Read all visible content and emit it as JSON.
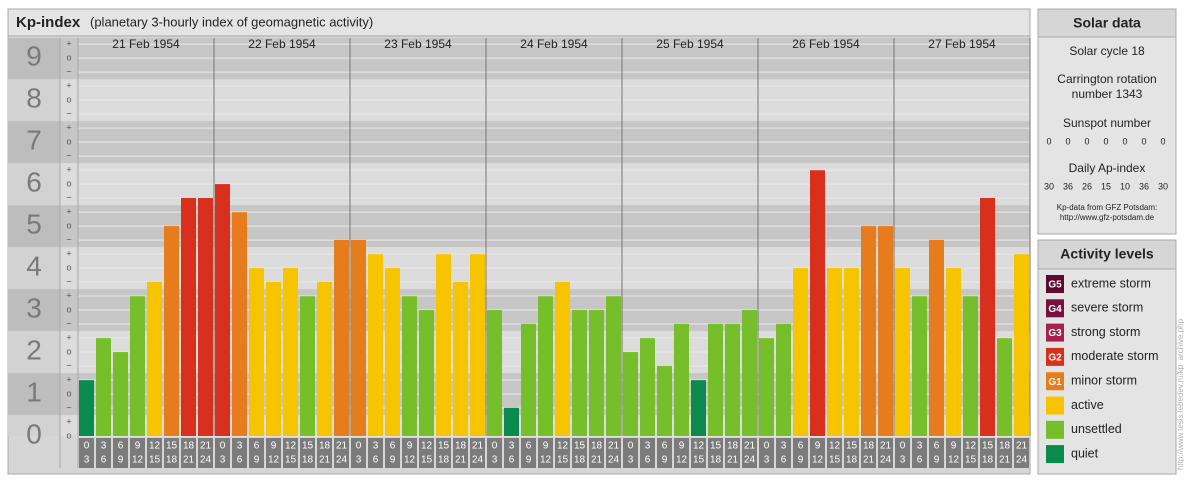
{
  "chart_data": {
    "type": "bar",
    "title": "Kp-index",
    "subtitle": "(planetary 3-hourly index of geomagnetic activity)",
    "ylim": [
      0,
      9.48
    ],
    "yticks": [
      0,
      1,
      2,
      3,
      4,
      5,
      6,
      7,
      8,
      9
    ],
    "minor_marks": {
      "minus": "−",
      "zero": "o",
      "plus": "+"
    },
    "intervals": [
      [
        0,
        3
      ],
      [
        3,
        6
      ],
      [
        6,
        9
      ],
      [
        9,
        12
      ],
      [
        12,
        15
      ],
      [
        15,
        18
      ],
      [
        18,
        21
      ],
      [
        21,
        24
      ]
    ],
    "days": [
      {
        "date": "21 Feb 1954",
        "values": [
          1.33,
          2.33,
          2,
          3.33,
          3.67,
          5,
          5.67,
          5.67
        ],
        "colors": [
          "#0b8a4d",
          "#76bf2b",
          "#76bf2b",
          "#76bf2b",
          "#f7c500",
          "#e77c1c",
          "#d9301e",
          "#d9301e"
        ]
      },
      {
        "date": "22 Feb 1954",
        "values": [
          6,
          5.33,
          4,
          3.67,
          4,
          3.33,
          3.67,
          4.67
        ],
        "colors": [
          "#d9301e",
          "#e77c1c",
          "#f7c500",
          "#f7c500",
          "#f7c500",
          "#76bf2b",
          "#f7c500",
          "#e77c1c"
        ]
      },
      {
        "date": "23 Feb 1954",
        "values": [
          4.67,
          4.33,
          4,
          3.33,
          3,
          4.33,
          3.67,
          4.33
        ],
        "colors": [
          "#e77c1c",
          "#f7c500",
          "#f7c500",
          "#76bf2b",
          "#76bf2b",
          "#f7c500",
          "#f7c500",
          "#f7c500"
        ]
      },
      {
        "date": "24 Feb 1954",
        "values": [
          3,
          0.67,
          2.67,
          3.33,
          3.67,
          3,
          3,
          3.33
        ],
        "colors": [
          "#76bf2b",
          "#0b8a4d",
          "#76bf2b",
          "#76bf2b",
          "#f7c500",
          "#76bf2b",
          "#76bf2b",
          "#76bf2b"
        ]
      },
      {
        "date": "25 Feb 1954",
        "values": [
          2,
          2.33,
          1.67,
          2.67,
          1.33,
          2.67,
          2.67,
          3
        ],
        "colors": [
          "#76bf2b",
          "#76bf2b",
          "#76bf2b",
          "#76bf2b",
          "#0b8a4d",
          "#76bf2b",
          "#76bf2b",
          "#76bf2b"
        ]
      },
      {
        "date": "26 Feb 1954",
        "values": [
          2.33,
          2.67,
          4,
          6.33,
          4,
          4,
          5,
          5
        ],
        "colors": [
          "#76bf2b",
          "#76bf2b",
          "#f7c500",
          "#d9301e",
          "#f7c500",
          "#f7c500",
          "#e77c1c",
          "#e77c1c"
        ]
      },
      {
        "date": "27 Feb 1954",
        "values": [
          4,
          3.33,
          4.67,
          4,
          3.33,
          5.67,
          2.33,
          4.33
        ],
        "colors": [
          "#f7c500",
          "#76bf2b",
          "#e77c1c",
          "#f7c500",
          "#76bf2b",
          "#d9301e",
          "#76bf2b",
          "#f7c500"
        ]
      }
    ],
    "solar": {
      "title": "Solar data",
      "cycle": "Solar cycle 18",
      "carrington": [
        "Carrington rotation",
        "number 1343"
      ],
      "sunspot_title": "Sunspot number",
      "sunspot": [
        0,
        0,
        0,
        0,
        0,
        0,
        0
      ],
      "ap_title": "Daily Ap-index",
      "ap": [
        30,
        36,
        26,
        15,
        10,
        36,
        30
      ],
      "source": [
        "Kp-data from GFZ Potsdam:",
        "http://www.gfz-potsdam.de"
      ]
    },
    "legend": {
      "title": "Activity levels",
      "levels": [
        {
          "code": "G5",
          "label": "extreme storm",
          "color": "#5c0a30"
        },
        {
          "code": "G4",
          "label": "severe storm",
          "color": "#7a1042"
        },
        {
          "code": "G3",
          "label": "strong storm",
          "color": "#a8204f"
        },
        {
          "code": "G2",
          "label": "moderate storm",
          "color": "#d9301e"
        },
        {
          "code": "G1",
          "label": "minor storm",
          "color": "#e77c1c"
        },
        {
          "label": "active",
          "color": "#f7c500"
        },
        {
          "label": "unsettled",
          "color": "#76bf2b"
        },
        {
          "label": "quiet",
          "color": "#0b8a4d"
        }
      ]
    },
    "watermark": "http://www.tesis.lebedev.ru/kp_archive.php"
  }
}
